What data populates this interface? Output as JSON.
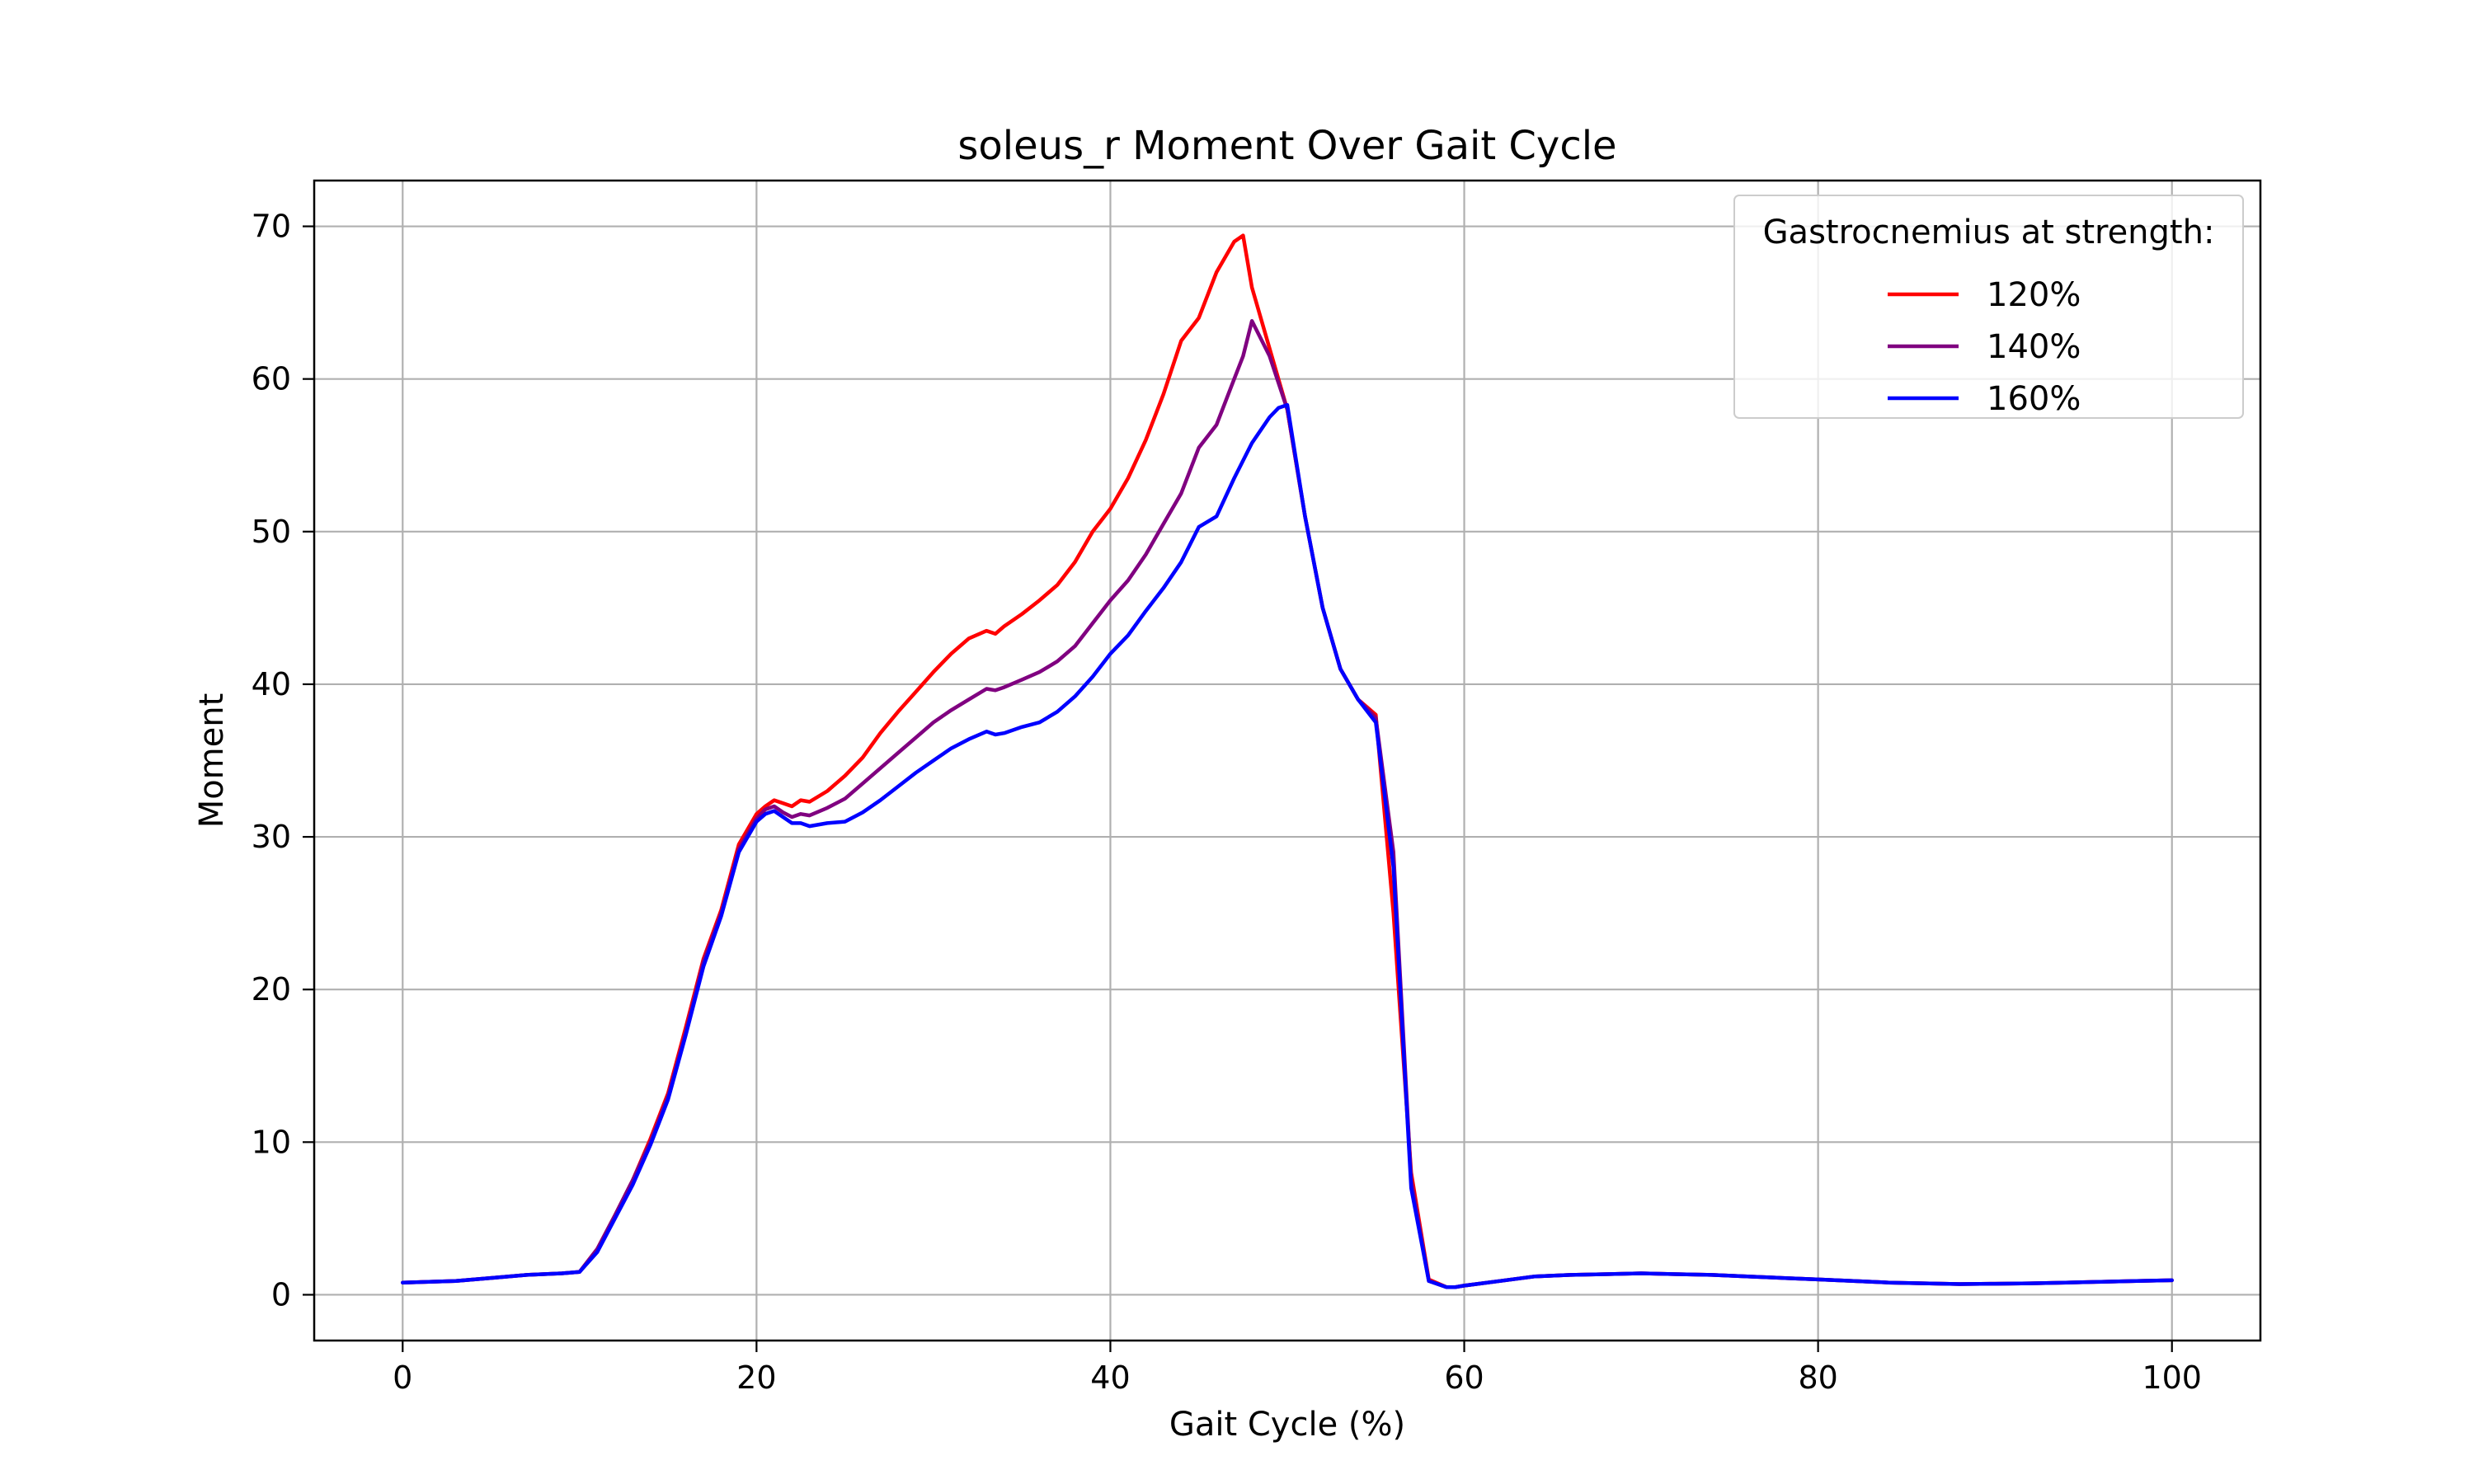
{
  "chart_data": {
    "type": "line",
    "title": "soleus_r Moment Over Gait Cycle",
    "xlabel": "Gait Cycle (%)",
    "ylabel": "Moment",
    "xlim": [
      -5,
      105
    ],
    "ylim": [
      -3,
      73
    ],
    "xticks": [
      0,
      20,
      40,
      60,
      80,
      100
    ],
    "yticks": [
      0,
      10,
      20,
      30,
      40,
      50,
      60,
      70
    ],
    "grid": true,
    "legend": {
      "title": "Gastrocnemius at strength:",
      "placement": "top-right"
    },
    "series": [
      {
        "name": "120%",
        "color": "#ff0000",
        "x": [
          0,
          3,
          5,
          7,
          9,
          10,
          11,
          12,
          13,
          14,
          15,
          16,
          17,
          18,
          19,
          20,
          20.5,
          21,
          21.5,
          22,
          22.5,
          23,
          24,
          25,
          26,
          27,
          28,
          29,
          30,
          31,
          32,
          33,
          33.5,
          34,
          35,
          36,
          37,
          38,
          39,
          40,
          41,
          42,
          43,
          44,
          45,
          46,
          47,
          47.5,
          48,
          49,
          50,
          51,
          52,
          53,
          54,
          55,
          56,
          57,
          58,
          59,
          59.5,
          60,
          62,
          64,
          66,
          68,
          70,
          72,
          74,
          76,
          78,
          80,
          82,
          84,
          86,
          88,
          90,
          92,
          94,
          96,
          98,
          100
        ],
        "y": [
          0.8,
          0.9,
          1.1,
          1.3,
          1.4,
          1.5,
          3.0,
          5.2,
          7.5,
          10.2,
          13.2,
          17.5,
          22.0,
          25.2,
          29.5,
          31.5,
          32.0,
          32.4,
          32.2,
          32.0,
          32.4,
          32.3,
          33.0,
          34.0,
          35.2,
          36.8,
          38.2,
          39.5,
          40.8,
          42.0,
          43.0,
          43.5,
          43.3,
          43.8,
          44.6,
          45.5,
          46.5,
          48.0,
          50.0,
          51.5,
          53.5,
          56.0,
          59.0,
          62.5,
          64.0,
          67.0,
          69.0,
          69.4,
          66.0,
          62.0,
          58.0,
          51.0,
          45.0,
          41.0,
          39.0,
          38.0,
          25.0,
          8.0,
          1.0,
          0.5,
          0.5,
          0.6,
          0.9,
          1.2,
          1.3,
          1.35,
          1.4,
          1.35,
          1.3,
          1.2,
          1.1,
          1.0,
          0.9,
          0.8,
          0.75,
          0.7,
          0.72,
          0.75,
          0.8,
          0.85,
          0.9,
          0.95
        ]
      },
      {
        "name": "140%",
        "color": "#800080",
        "x": [
          0,
          3,
          5,
          7,
          9,
          10,
          11,
          12,
          13,
          14,
          15,
          16,
          17,
          18,
          19,
          20,
          20.5,
          21,
          21.5,
          22,
          22.5,
          23,
          24,
          25,
          26,
          27,
          28,
          29,
          30,
          31,
          32,
          33,
          33.5,
          34,
          35,
          36,
          37,
          38,
          39,
          40,
          41,
          42,
          43,
          44,
          45,
          46,
          47,
          47.5,
          48,
          49,
          50,
          51,
          52,
          53,
          54,
          55,
          56,
          57,
          58,
          59,
          59.5,
          60,
          62,
          64,
          66,
          68,
          70,
          72,
          74,
          76,
          78,
          80,
          82,
          84,
          86,
          88,
          90,
          92,
          94,
          96,
          98,
          100
        ],
        "y": [
          0.8,
          0.9,
          1.1,
          1.3,
          1.4,
          1.5,
          3.0,
          5.2,
          7.5,
          10.0,
          13.0,
          17.2,
          21.8,
          25.0,
          29.2,
          31.2,
          31.8,
          32.0,
          31.6,
          31.3,
          31.5,
          31.4,
          31.9,
          32.5,
          33.5,
          34.5,
          35.5,
          36.5,
          37.5,
          38.3,
          39.0,
          39.7,
          39.6,
          39.8,
          40.3,
          40.8,
          41.5,
          42.5,
          44.0,
          45.5,
          46.8,
          48.5,
          50.5,
          52.5,
          55.5,
          57.0,
          60.0,
          61.5,
          63.8,
          61.5,
          58.0,
          51.0,
          45.0,
          41.0,
          39.0,
          37.8,
          29.0,
          7.5,
          0.9,
          0.5,
          0.5,
          0.6,
          0.9,
          1.2,
          1.3,
          1.35,
          1.4,
          1.35,
          1.3,
          1.2,
          1.1,
          1.0,
          0.9,
          0.8,
          0.75,
          0.7,
          0.72,
          0.75,
          0.8,
          0.85,
          0.9,
          0.95
        ]
      },
      {
        "name": "160%",
        "color": "#0000ff",
        "x": [
          0,
          3,
          5,
          7,
          9,
          10,
          11,
          12,
          13,
          14,
          15,
          16,
          17,
          18,
          19,
          20,
          20.5,
          21,
          21.5,
          22,
          22.5,
          23,
          24,
          25,
          26,
          27,
          28,
          29,
          30,
          31,
          32,
          33,
          33.5,
          34,
          35,
          36,
          37,
          38,
          39,
          40,
          41,
          42,
          43,
          44,
          45,
          46,
          47,
          48,
          49,
          49.5,
          50,
          51,
          52,
          53,
          54,
          55,
          56,
          57,
          58,
          59,
          59.5,
          60,
          62,
          64,
          66,
          68,
          70,
          72,
          74,
          76,
          78,
          80,
          82,
          84,
          86,
          88,
          90,
          92,
          94,
          96,
          98,
          100
        ],
        "y": [
          0.8,
          0.9,
          1.1,
          1.3,
          1.4,
          1.5,
          2.8,
          5.0,
          7.2,
          9.8,
          12.8,
          17.0,
          21.5,
          24.8,
          29.0,
          31.0,
          31.5,
          31.7,
          31.3,
          30.9,
          30.9,
          30.7,
          30.9,
          31.0,
          31.6,
          32.4,
          33.3,
          34.2,
          35.0,
          35.8,
          36.4,
          36.9,
          36.7,
          36.8,
          37.2,
          37.5,
          38.2,
          39.2,
          40.5,
          42.0,
          43.2,
          44.8,
          46.3,
          48.0,
          50.3,
          51.0,
          53.5,
          55.8,
          57.5,
          58.1,
          58.3,
          51.0,
          45.0,
          41.0,
          39.0,
          37.5,
          28.0,
          7.0,
          0.9,
          0.5,
          0.5,
          0.6,
          0.9,
          1.2,
          1.3,
          1.35,
          1.4,
          1.35,
          1.3,
          1.2,
          1.1,
          1.0,
          0.9,
          0.8,
          0.75,
          0.7,
          0.72,
          0.75,
          0.8,
          0.85,
          0.9,
          0.95
        ]
      }
    ]
  }
}
